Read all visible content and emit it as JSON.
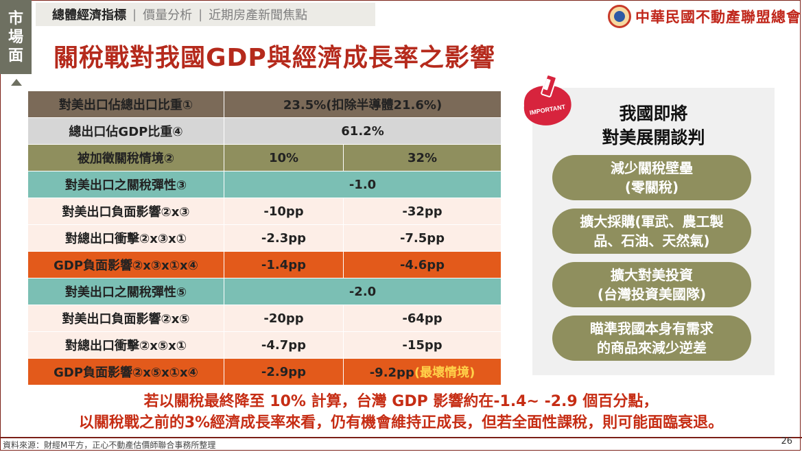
{
  "side_tab": [
    "市",
    "場",
    "面"
  ],
  "nav": {
    "active": "總體經濟指標",
    "items": [
      "價量分析",
      "近期房產新聞焦點"
    ]
  },
  "logo": {
    "text": "中華民國不動產聯盟總會"
  },
  "title": "關稅戰對我國GDP與經濟成長率之影響",
  "table": {
    "export_ratio": {
      "label": "對美出口佔總出口比重①",
      "value": "23.5%(扣除半導體21.6%)"
    },
    "gdp_ratio": {
      "label": "總出口佔GDP比重④",
      "value": "61.2%"
    },
    "tariff": {
      "label": "被加徵關稅情境②",
      "v1": "10%",
      "v2": "32%"
    },
    "elasticity1": {
      "label": "對美出口之關稅彈性③",
      "value": "-1.0"
    },
    "impact1": {
      "label": "對美出口負面影響②x③",
      "v1": "-10pp",
      "v2": "-32pp"
    },
    "shock1": {
      "label": "對總出口衝擊②x③x①",
      "v1": "-2.3pp",
      "v2": "-7.5pp"
    },
    "gdp1": {
      "label": "GDP負面影響②x③x①x④",
      "v1": "-1.4pp",
      "v2": "-4.6pp"
    },
    "elasticity2": {
      "label": "對美出口之關稅彈性⑤",
      "value": "-2.0"
    },
    "impact2": {
      "label": "對美出口負面影響②x⑤",
      "v1": "-20pp",
      "v2": "-64pp"
    },
    "shock2": {
      "label": "對總出口衝擊②x⑤x①",
      "v1": "-4.7pp",
      "v2": "-15pp"
    },
    "gdp2": {
      "label": "GDP負面影響②x⑤x①x④",
      "v1": "-2.9pp",
      "v2": "-9.2pp",
      "v2_note": "(最壞情境)"
    }
  },
  "important_label": "IMPORTANT",
  "right_panel": {
    "title_line1": "我國即將",
    "title_line2": "對美展開談判",
    "pills": [
      {
        "line1": "減少關稅壁壘",
        "line2": "(零關稅)"
      },
      {
        "line1": "擴大採購(軍武、農工製",
        "line2": "品、石油、天然氣)"
      },
      {
        "line1": "擴大對美投資",
        "line2": "(台灣投資美國隊)"
      },
      {
        "line1": "瞄準我國本身有需求",
        "line2": "的商品來減少逆差"
      }
    ]
  },
  "conclusion": {
    "line1": "若以關稅最終降至 10% 計算，台灣 GDP 影響約在-1.4~ -2.9 個百分點，",
    "line2": "以關稅戰之前的3%經濟成長率來看，仍有機會維持正成長，但若全面性課稅，則可能面臨衰退。"
  },
  "footer": {
    "source": "資料來源：財經M平方，正心不動產估價師聯合事務所整理",
    "page": "26"
  },
  "colors": {
    "title_red": "#b52a1c",
    "olive": "#8f8f5e",
    "teal": "#7bbfb4",
    "orange": "#e35a1b",
    "brown": "#7b6a58"
  }
}
